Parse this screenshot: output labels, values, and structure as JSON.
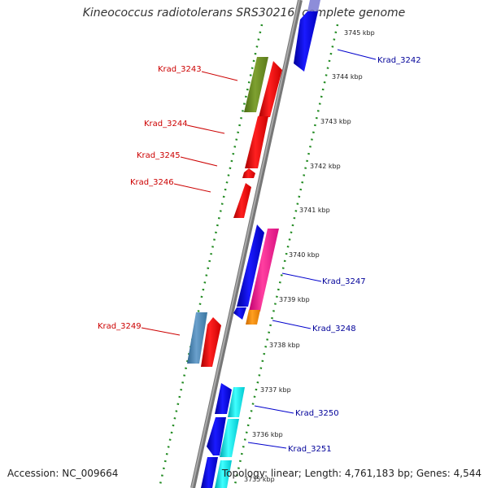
{
  "title": "Kineococcus radiotolerans SRS30216, complete genome",
  "footer": {
    "accession": "Accession: NC_009664",
    "topology": "Topology: linear; Length: 4,761,183 bp; Genes: 4,544"
  },
  "kbp_ticks": [
    "3745 kbp",
    "3744 kbp",
    "3743 kbp",
    "3742 kbp",
    "3741 kbp",
    "3740 kbp",
    "3739 kbp",
    "3738 kbp",
    "3737 kbp",
    "3736 kbp",
    "3735 kbp"
  ],
  "labels_left": [
    "Krad_3243",
    "Krad_3244",
    "Krad_3245",
    "Krad_3246",
    "Krad_3249"
  ],
  "labels_right": [
    "Krad_3242",
    "Krad_3247",
    "Krad_3248",
    "Krad_3250",
    "Krad_3251"
  ],
  "colors": {
    "red": "#ff0000",
    "blue": "#0000ee",
    "olive": "#6b8e23",
    "steel": "#4682b4",
    "pink": "#ff1493",
    "orange": "#ff8c00",
    "cyan": "#00e5ee",
    "dots": "#228b22"
  }
}
